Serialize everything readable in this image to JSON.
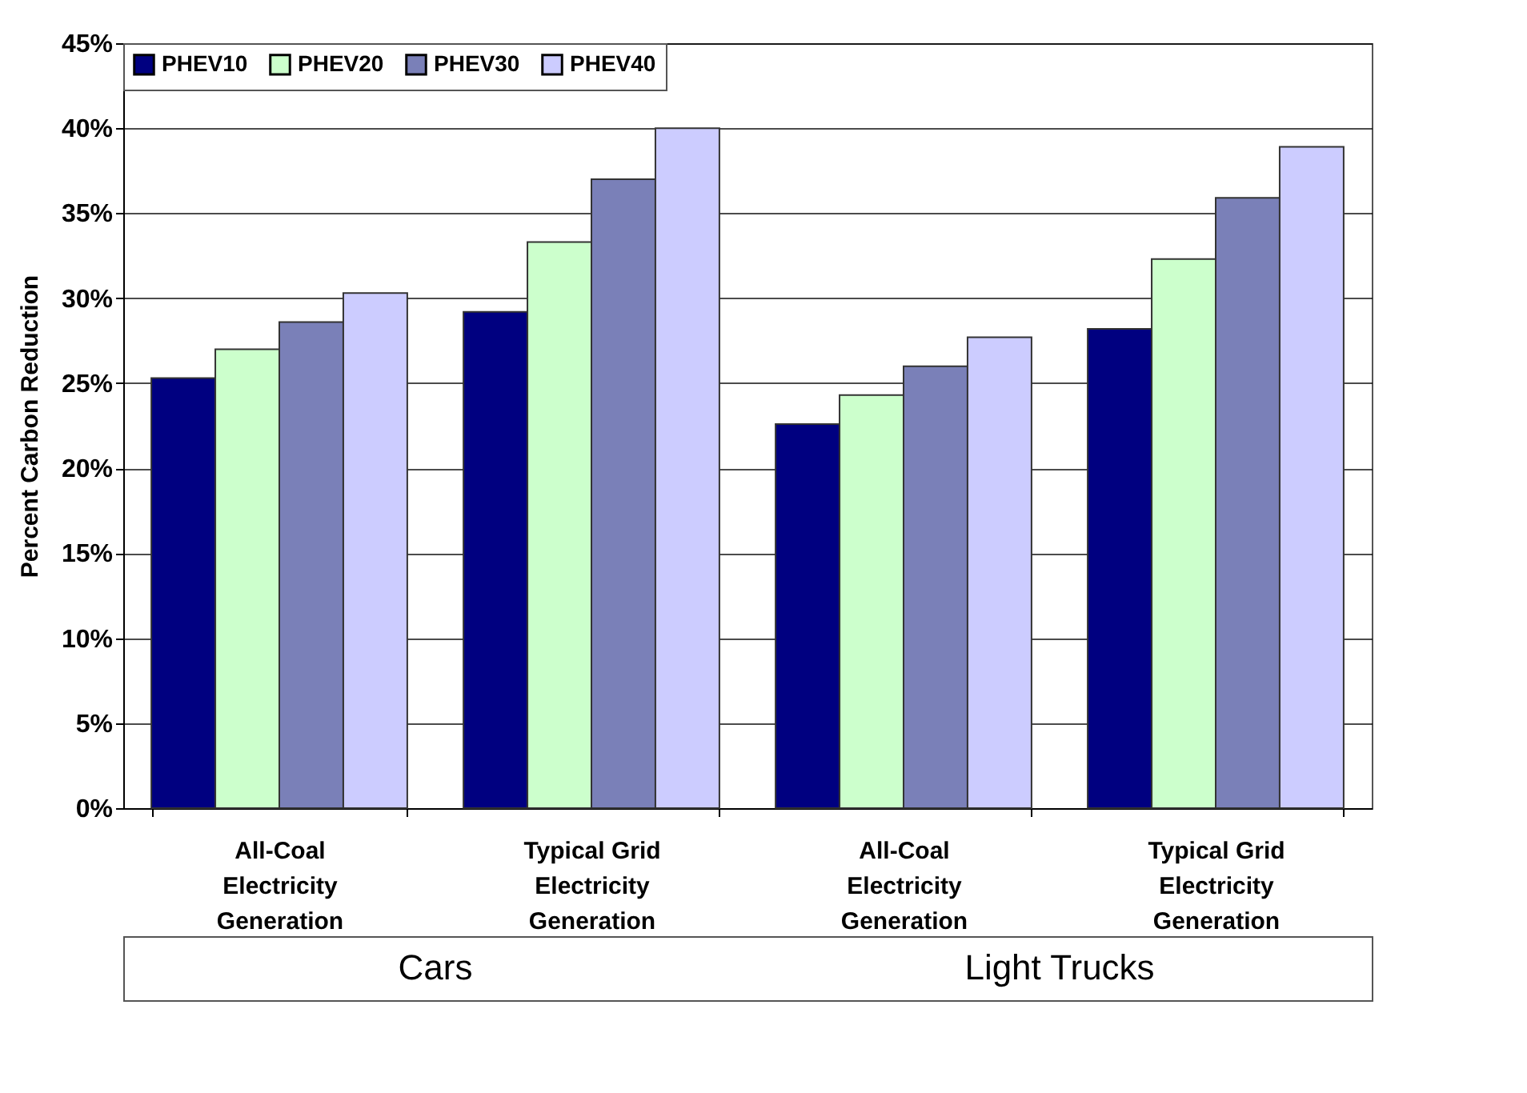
{
  "chart_data": {
    "type": "bar",
    "ylabel": "Percent Carbon Reduction",
    "categories": [
      "All-Coal Electricity Generation",
      "Typical Grid Electricity Generation",
      "All-Coal Electricity Generation",
      "Typical Grid Electricity Generation"
    ],
    "series": [
      {
        "name": "PHEV10",
        "color": "#000080",
        "values": [
          25.3,
          29.2,
          22.6,
          28.2
        ]
      },
      {
        "name": "PHEV20",
        "color": "#ccffcc",
        "values": [
          27.0,
          33.3,
          24.3,
          32.3
        ]
      },
      {
        "name": "PHEV30",
        "color": "#7a80b8",
        "values": [
          28.6,
          37.0,
          26.0,
          35.9
        ]
      },
      {
        "name": "PHEV40",
        "color": "#ccccff",
        "values": [
          30.3,
          40.0,
          27.7,
          38.9
        ]
      }
    ],
    "ylim": [
      0,
      45
    ],
    "yticks": [
      {
        "value": 0,
        "label": "0%"
      },
      {
        "value": 5,
        "label": "5%"
      },
      {
        "value": 10,
        "label": "10%"
      },
      {
        "value": 15,
        "label": "15%"
      },
      {
        "value": 20,
        "label": "20%"
      },
      {
        "value": 25,
        "label": "25%"
      },
      {
        "value": 30,
        "label": "30%"
      },
      {
        "value": 35,
        "label": "35%"
      },
      {
        "value": 40,
        "label": "40%"
      },
      {
        "value": 45,
        "label": "45%"
      }
    ],
    "annotations": [
      "Cars",
      "Light Trucks"
    ],
    "grid": "y",
    "legend": "top"
  }
}
